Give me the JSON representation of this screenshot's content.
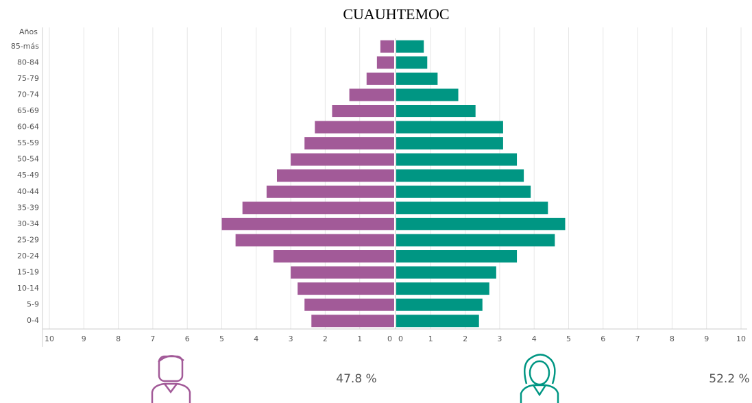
{
  "chart_data": {
    "type": "pyramid",
    "title": "CUAUHTEMOC",
    "y_label": "Años",
    "categories": [
      "85-más",
      "80-84",
      "75-79",
      "70-74",
      "65-69",
      "60-64",
      "55-59",
      "50-54",
      "45-49",
      "40-44",
      "35-39",
      "30-34",
      "25-29",
      "20-24",
      "15-19",
      "10-14",
      "5-9",
      "0-4"
    ],
    "series": [
      {
        "color": "#a25a98",
        "side": "left",
        "total_label": "47.8 %",
        "values": [
          0.4,
          0.5,
          0.8,
          1.3,
          1.8,
          2.3,
          2.6,
          3.0,
          3.4,
          3.7,
          4.4,
          5.0,
          4.6,
          3.5,
          3.0,
          2.8,
          2.6,
          2.4
        ]
      },
      {
        "color": "#009683",
        "side": "right",
        "total_label": "52.2 %",
        "values": [
          0.8,
          0.9,
          1.2,
          1.8,
          2.3,
          3.1,
          3.1,
          3.5,
          3.7,
          3.9,
          4.4,
          4.9,
          4.6,
          3.5,
          2.9,
          2.7,
          2.5,
          2.4
        ]
      }
    ],
    "xlim": [
      0,
      10
    ],
    "xticks": [
      0,
      1,
      2,
      3,
      4,
      5,
      6,
      7,
      8,
      9,
      10
    ],
    "grid": true
  }
}
